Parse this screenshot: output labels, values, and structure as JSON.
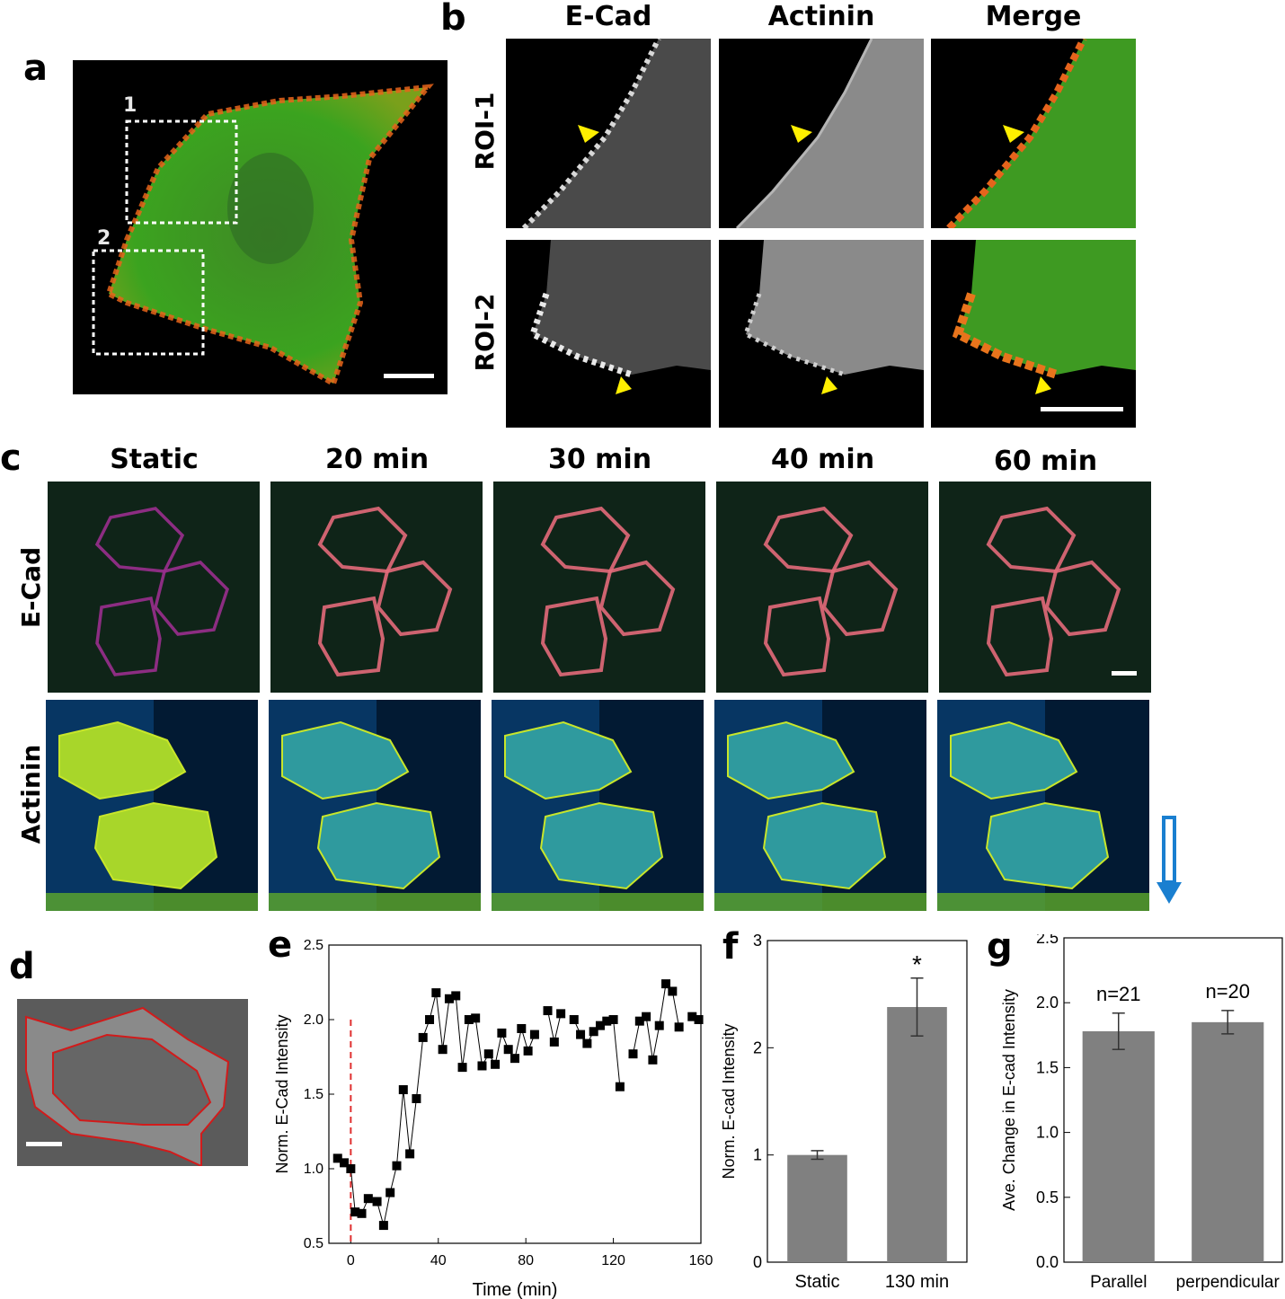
{
  "panel_letters": {
    "a": "a",
    "b": "b",
    "c": "c",
    "d": "d",
    "e": "e",
    "f": "f",
    "g": "g"
  },
  "panel_a": {
    "roi_labels": [
      "1",
      "2"
    ]
  },
  "panel_b": {
    "columns": [
      "E-Cad",
      "Actinin",
      "Merge"
    ],
    "rows": [
      "ROI-1",
      "ROI-2"
    ],
    "arrow_color": "#ffef00"
  },
  "panel_c": {
    "columns": [
      "Static",
      "20 min",
      "30 min",
      "40 min",
      "60 min"
    ],
    "rows": [
      "E-Cad",
      "Actinin"
    ],
    "flow_arrow_color": "#1a7fd0"
  },
  "colors": {
    "green": "#2fb12a",
    "red": "#e0391c",
    "bar": "#808080",
    "dashed": "#e03030"
  },
  "chart_data": [
    {
      "panel": "e",
      "type": "scatter",
      "xlabel": "Time (min)",
      "ylabel": "Norm. E-Cad Intensity",
      "xlim": [
        -10,
        160
      ],
      "ylim": [
        0.5,
        2.5
      ],
      "xticks": [
        0,
        40,
        80,
        120,
        160
      ],
      "yticks": [
        0.5,
        1.0,
        1.5,
        2.0,
        2.5
      ],
      "ytick_labels": [
        "0.5",
        "1.0",
        "1.5",
        "2.0",
        "2.5"
      ],
      "marker_line": 0,
      "segments": [
        {
          "x": [
            -6,
            -3,
            0,
            2,
            5,
            8,
            12,
            15,
            18,
            21,
            24,
            27,
            30,
            33,
            36,
            39,
            42,
            45,
            48,
            51,
            54,
            57,
            60,
            63,
            66,
            69,
            72,
            75,
            78,
            81,
            84
          ],
          "y": [
            1.07,
            1.04,
            1.0,
            0.71,
            0.7,
            0.8,
            0.78,
            0.62,
            0.84,
            1.02,
            1.53,
            1.1,
            1.47,
            1.88,
            2.0,
            2.18,
            1.8,
            2.14,
            2.16,
            1.68,
            2.0,
            2.01,
            1.69,
            1.77,
            1.7,
            1.91,
            1.8,
            1.74,
            1.94,
            1.79,
            1.9
          ]
        },
        {
          "x": [
            90,
            93,
            96
          ],
          "y": [
            2.06,
            1.85,
            2.04
          ]
        },
        {
          "x": [
            102,
            105,
            108,
            111,
            114,
            117,
            120,
            123
          ],
          "y": [
            2.0,
            1.9,
            1.84,
            1.92,
            1.96,
            1.99,
            2.0,
            1.55
          ]
        },
        {
          "x": [
            129,
            132,
            135,
            138,
            141,
            144,
            147,
            150
          ],
          "y": [
            1.77,
            1.99,
            2.02,
            1.73,
            1.96,
            2.24,
            2.19,
            1.95
          ]
        },
        {
          "x": [
            156,
            159
          ],
          "y": [
            2.02,
            2.0
          ]
        }
      ]
    },
    {
      "panel": "f",
      "type": "bar",
      "categories": [
        "Static",
        "130 min"
      ],
      "values": [
        1.0,
        2.38
      ],
      "errors": [
        0.04,
        0.27
      ],
      "ylabel": "Norm. E-cad Intensity",
      "ylim": [
        0,
        3
      ],
      "yticks": [
        0,
        1,
        2,
        3
      ],
      "annotation": "*"
    },
    {
      "panel": "g",
      "type": "bar",
      "categories": [
        "Parallel",
        "perpendicular"
      ],
      "values": [
        1.78,
        1.85
      ],
      "errors": [
        0.14,
        0.09
      ],
      "annotations": [
        "n=21",
        "n=20"
      ],
      "ylabel": "Ave. Change in E-cad Intensity",
      "ylim": [
        0,
        2.5
      ],
      "yticks": [
        0.0,
        0.5,
        1.0,
        1.5,
        2.0,
        2.5
      ],
      "ytick_labels": [
        "0.0",
        "0.5",
        "1.0",
        "1.5",
        "2.0",
        "2.5"
      ]
    }
  ]
}
